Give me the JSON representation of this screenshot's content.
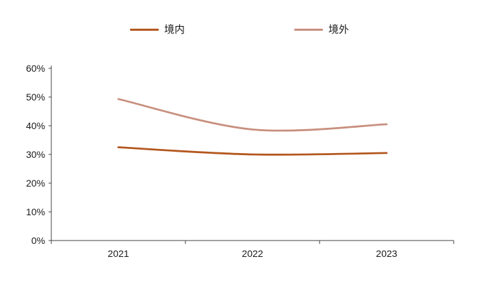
{
  "chart_data": {
    "type": "line",
    "categories": [
      "2021",
      "2022",
      "2023"
    ],
    "series": [
      {
        "name": "境内",
        "color": "#B4571E",
        "values": [
          32.5,
          30.0,
          30.5
        ]
      },
      {
        "name": "境外",
        "color": "#C88F7E",
        "values": [
          49.3,
          38.7,
          40.5
        ]
      }
    ],
    "ylim": [
      0,
      60
    ],
    "ytick_step": 10,
    "ytick_labels": [
      "0%",
      "10%",
      "20%",
      "30%",
      "40%",
      "50%",
      "60%"
    ],
    "xlabel": "",
    "ylabel": "",
    "grid": false,
    "legend_position": "top",
    "axis_color": "#404040"
  }
}
